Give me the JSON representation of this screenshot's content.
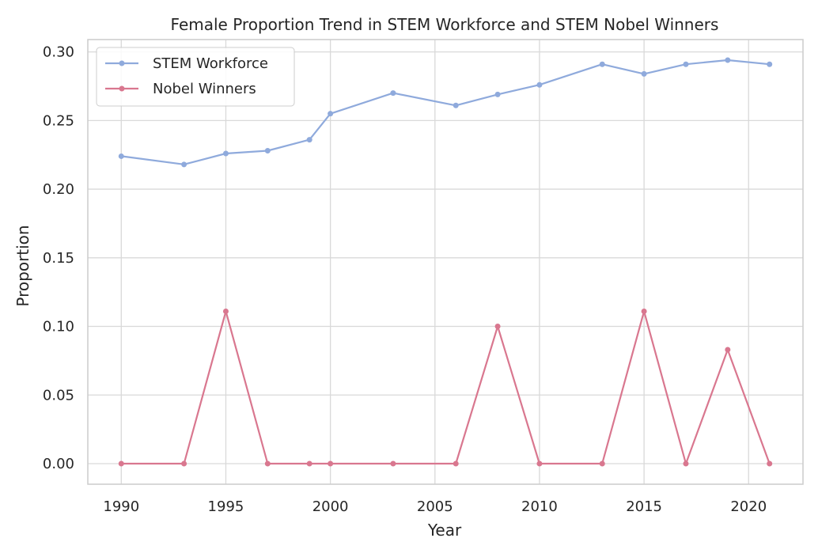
{
  "chart_data": {
    "type": "line",
    "title": "Female Proportion Trend in STEM Workforce and STEM Nobel Winners",
    "xlabel": "Year",
    "ylabel": "Proportion",
    "xlim": [
      1988.4,
      2022.6
    ],
    "ylim": [
      -0.015,
      0.309
    ],
    "x_ticks": [
      1990,
      1995,
      2000,
      2005,
      2010,
      2015,
      2020
    ],
    "y_ticks": [
      "0.00",
      "0.05",
      "0.10",
      "0.15",
      "0.20",
      "0.25",
      "0.30"
    ],
    "grid": true,
    "legend_position": "top-left",
    "series": [
      {
        "name": "STEM Workforce",
        "color": "#8faadc",
        "x": [
          1990,
          1993,
          1995,
          1997,
          1999,
          2000,
          2003,
          2006,
          2008,
          2010,
          2013,
          2015,
          2017,
          2019,
          2021
        ],
        "values": [
          0.224,
          0.218,
          0.226,
          0.228,
          0.236,
          0.255,
          0.27,
          0.261,
          0.269,
          0.276,
          0.291,
          0.284,
          0.291,
          0.294,
          0.291
        ]
      },
      {
        "name": "Nobel Winners",
        "color": "#d9778f",
        "x": [
          1990,
          1993,
          1995,
          1997,
          1999,
          2000,
          2003,
          2006,
          2008,
          2010,
          2013,
          2015,
          2017,
          2019,
          2021
        ],
        "values": [
          0.0,
          0.0,
          0.111,
          0.0,
          0.0,
          0.0,
          0.0,
          0.0,
          0.1,
          0.0,
          0.0,
          0.111,
          0.0,
          0.083,
          0.0
        ]
      }
    ]
  }
}
